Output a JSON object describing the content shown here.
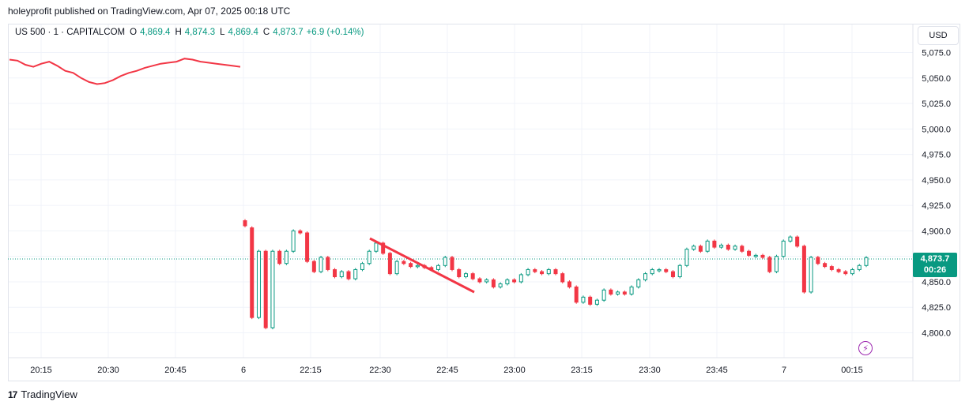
{
  "header": {
    "text": "holeyprofit published on TradingView.com, Apr 07, 2025 00:18 UTC"
  },
  "legend": {
    "symbol": "US 500 · 1 · CAPITALCOM",
    "o_label": "O",
    "o_value": "4,869.4",
    "h_label": "H",
    "h_value": "4,874.3",
    "l_label": "L",
    "l_value": "4,869.4",
    "c_label": "C",
    "c_value": "4,873.7",
    "change": "+6.9 (+0.14%)"
  },
  "currency": "USD",
  "price_tag": {
    "price": "4,873.7",
    "countdown": "00:26"
  },
  "footer": {
    "logo": "17",
    "brand": "TradingView"
  },
  "colors": {
    "up": "#089981",
    "down": "#f23645",
    "grid": "#f0f3fa",
    "drawing": "#f23645"
  },
  "icons": [
    "lightning-icon",
    "tradingview-logo-icon"
  ],
  "chart_data": {
    "type": "candlestick",
    "title": "US 500 · 1 · CAPITALCOM",
    "ylim": [
      4785,
      5085
    ],
    "y_ticks": [
      4800,
      4825,
      4850,
      4875,
      4900,
      4925,
      4950,
      4975,
      5000,
      5025,
      5050,
      5075
    ],
    "y_tick_labels": [
      "4,800.0",
      "4,825.0",
      "4,850.0",
      "4,875.0",
      "4,900.0",
      "4,925.0",
      "4,950.0",
      "4,975.0",
      "5,000.0",
      "5,025.0",
      "5,050.0",
      "5,075.0"
    ],
    "x_tick_labels": [
      "20:15",
      "20:30",
      "20:45",
      "6",
      "22:15",
      "22:30",
      "22:45",
      "23:00",
      "23:15",
      "23:30",
      "23:45",
      "7",
      "00:15"
    ],
    "last_price": 4873.7,
    "session_1_path": [
      5068,
      5067,
      5063,
      5061,
      5064,
      5066,
      5062,
      5057,
      5055,
      5050,
      5046,
      5044,
      5045,
      5048,
      5052,
      5055,
      5057,
      5060,
      5062,
      5064,
      5065,
      5066,
      5069,
      5068,
      5066,
      5065,
      5064,
      5063,
      5062,
      5061
    ],
    "session_2_candles": [
      [
        4910,
        4905
      ],
      [
        4903,
        4815
      ],
      [
        4815,
        4880
      ],
      [
        4880,
        4805
      ],
      [
        4805,
        4880
      ],
      [
        4880,
        4868
      ],
      [
        4868,
        4880
      ],
      [
        4880,
        4900
      ],
      [
        4900,
        4898
      ],
      [
        4898,
        4870
      ],
      [
        4870,
        4860
      ],
      [
        4860,
        4874
      ],
      [
        4874,
        4862
      ],
      [
        4862,
        4855
      ],
      [
        4855,
        4860
      ],
      [
        4860,
        4853
      ],
      [
        4853,
        4862
      ],
      [
        4862,
        4868
      ],
      [
        4868,
        4880
      ],
      [
        4880,
        4888
      ],
      [
        4888,
        4878
      ],
      [
        4878,
        4858
      ],
      [
        4858,
        4870
      ],
      [
        4870,
        4868
      ],
      [
        4868,
        4865
      ],
      [
        4865,
        4866
      ],
      [
        4866,
        4864
      ],
      [
        4864,
        4862
      ],
      [
        4862,
        4866
      ],
      [
        4866,
        4874
      ],
      [
        4874,
        4862
      ],
      [
        4862,
        4855
      ],
      [
        4855,
        4858
      ],
      [
        4858,
        4853
      ],
      [
        4853,
        4850
      ],
      [
        4850,
        4852
      ],
      [
        4852,
        4845
      ],
      [
        4845,
        4848
      ],
      [
        4848,
        4852
      ],
      [
        4852,
        4850
      ],
      [
        4850,
        4857
      ],
      [
        4857,
        4862
      ],
      [
        4862,
        4860
      ],
      [
        4860,
        4858
      ],
      [
        4858,
        4862
      ],
      [
        4862,
        4858
      ],
      [
        4858,
        4850
      ],
      [
        4850,
        4845
      ],
      [
        4845,
        4830
      ],
      [
        4830,
        4835
      ],
      [
        4835,
        4828
      ],
      [
        4828,
        4832
      ],
      [
        4832,
        4842
      ],
      [
        4842,
        4838
      ],
      [
        4838,
        4840
      ],
      [
        4840,
        4838
      ],
      [
        4838,
        4845
      ],
      [
        4845,
        4852
      ],
      [
        4852,
        4858
      ],
      [
        4858,
        4862
      ],
      [
        4862,
        4862
      ],
      [
        4862,
        4860
      ],
      [
        4860,
        4855
      ],
      [
        4855,
        4866
      ],
      [
        4866,
        4882
      ],
      [
        4882,
        4885
      ],
      [
        4885,
        4880
      ],
      [
        4880,
        4890
      ],
      [
        4890,
        4884
      ],
      [
        4884,
        4886
      ],
      [
        4886,
        4882
      ],
      [
        4882,
        4885
      ],
      [
        4885,
        4880
      ],
      [
        4880,
        4876
      ],
      [
        4876,
        4876
      ],
      [
        4876,
        4874
      ],
      [
        4874,
        4860
      ],
      [
        4860,
        4875
      ],
      [
        4875,
        4890
      ],
      [
        4890,
        4894
      ],
      [
        4894,
        4885
      ],
      [
        4885,
        4840
      ],
      [
        4840,
        4874
      ],
      [
        4874,
        4868
      ],
      [
        4868,
        4865
      ],
      [
        4865,
        4862
      ],
      [
        4862,
        4860
      ],
      [
        4860,
        4858
      ],
      [
        4858,
        4862
      ],
      [
        4862,
        4866
      ],
      [
        4866,
        4873.7
      ]
    ],
    "drawing": {
      "type": "trend-line",
      "from": [
        "22:29",
        4892
      ],
      "to": [
        "22:54",
        4840
      ]
    }
  }
}
